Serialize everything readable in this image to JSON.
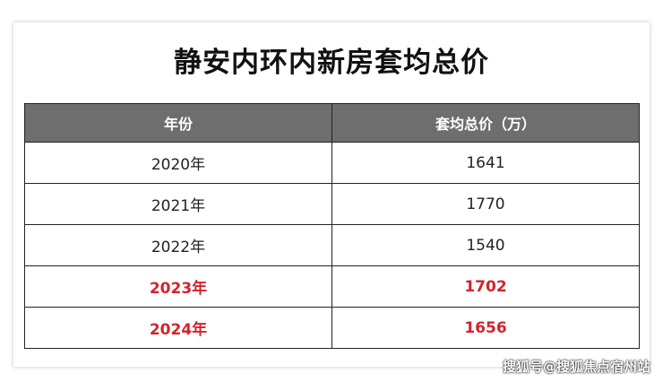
{
  "title": "静安内环内新房套均总价",
  "table": {
    "headers": [
      "年份",
      "套均总价（万）"
    ],
    "rows": [
      {
        "year": "2020年",
        "price": "1641",
        "highlight": false
      },
      {
        "year": "2021年",
        "price": "1770",
        "highlight": false
      },
      {
        "year": "2022年",
        "price": "1540",
        "highlight": false
      },
      {
        "year": "2023年",
        "price": "1702",
        "highlight": true
      },
      {
        "year": "2024年",
        "price": "1656",
        "highlight": true
      }
    ]
  },
  "colors": {
    "header_bg": "#6e6e6e",
    "highlight_text": "#d3232b"
  },
  "watermark": "搜狐号@搜狐焦点宿州站"
}
